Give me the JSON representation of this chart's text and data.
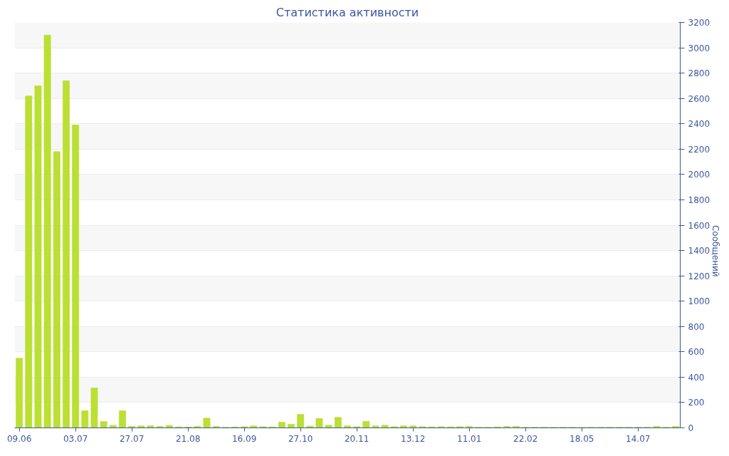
{
  "chart_data": {
    "type": "bar",
    "title": "Статистика активности",
    "ylabel": "Сообщений",
    "color": "#bbdf32",
    "categories": [
      "09.06",
      null,
      null,
      null,
      null,
      null,
      "03.07",
      null,
      null,
      null,
      null,
      null,
      "27.07",
      null,
      null,
      null,
      null,
      null,
      "21.08",
      null,
      null,
      null,
      null,
      null,
      "16.09",
      null,
      null,
      null,
      null,
      null,
      "27.10",
      null,
      null,
      null,
      null,
      null,
      "20.11",
      null,
      null,
      null,
      null,
      null,
      "13.12",
      null,
      null,
      null,
      null,
      null,
      "11.01",
      null,
      null,
      null,
      null,
      null,
      "22.02",
      null,
      null,
      null,
      null,
      null,
      "18.05",
      null,
      null,
      null,
      null,
      null,
      "14.07",
      null,
      null,
      null,
      null
    ],
    "values": [
      550,
      2620,
      2700,
      3100,
      2180,
      2740,
      2390,
      135,
      315,
      50,
      20,
      135,
      12,
      16,
      17,
      12,
      19,
      8,
      8,
      12,
      77,
      12,
      6,
      8,
      10,
      16,
      10,
      8,
      45,
      29,
      107,
      14,
      74,
      21,
      83,
      16,
      10,
      52,
      16,
      21,
      10,
      16,
      16,
      10,
      8,
      10,
      8,
      10,
      12,
      6,
      6,
      8,
      12,
      12,
      6,
      6,
      6,
      6,
      6,
      6,
      6,
      6,
      6,
      6,
      6,
      6,
      6,
      6,
      12,
      6,
      12
    ],
    "ylim": [
      0,
      3200
    ],
    "yticks": [
      0,
      200,
      400,
      600,
      800,
      1000,
      1200,
      1400,
      1600,
      1800,
      2000,
      2200,
      2400,
      2600,
      2800,
      3000,
      3200
    ],
    "grid": "y"
  }
}
